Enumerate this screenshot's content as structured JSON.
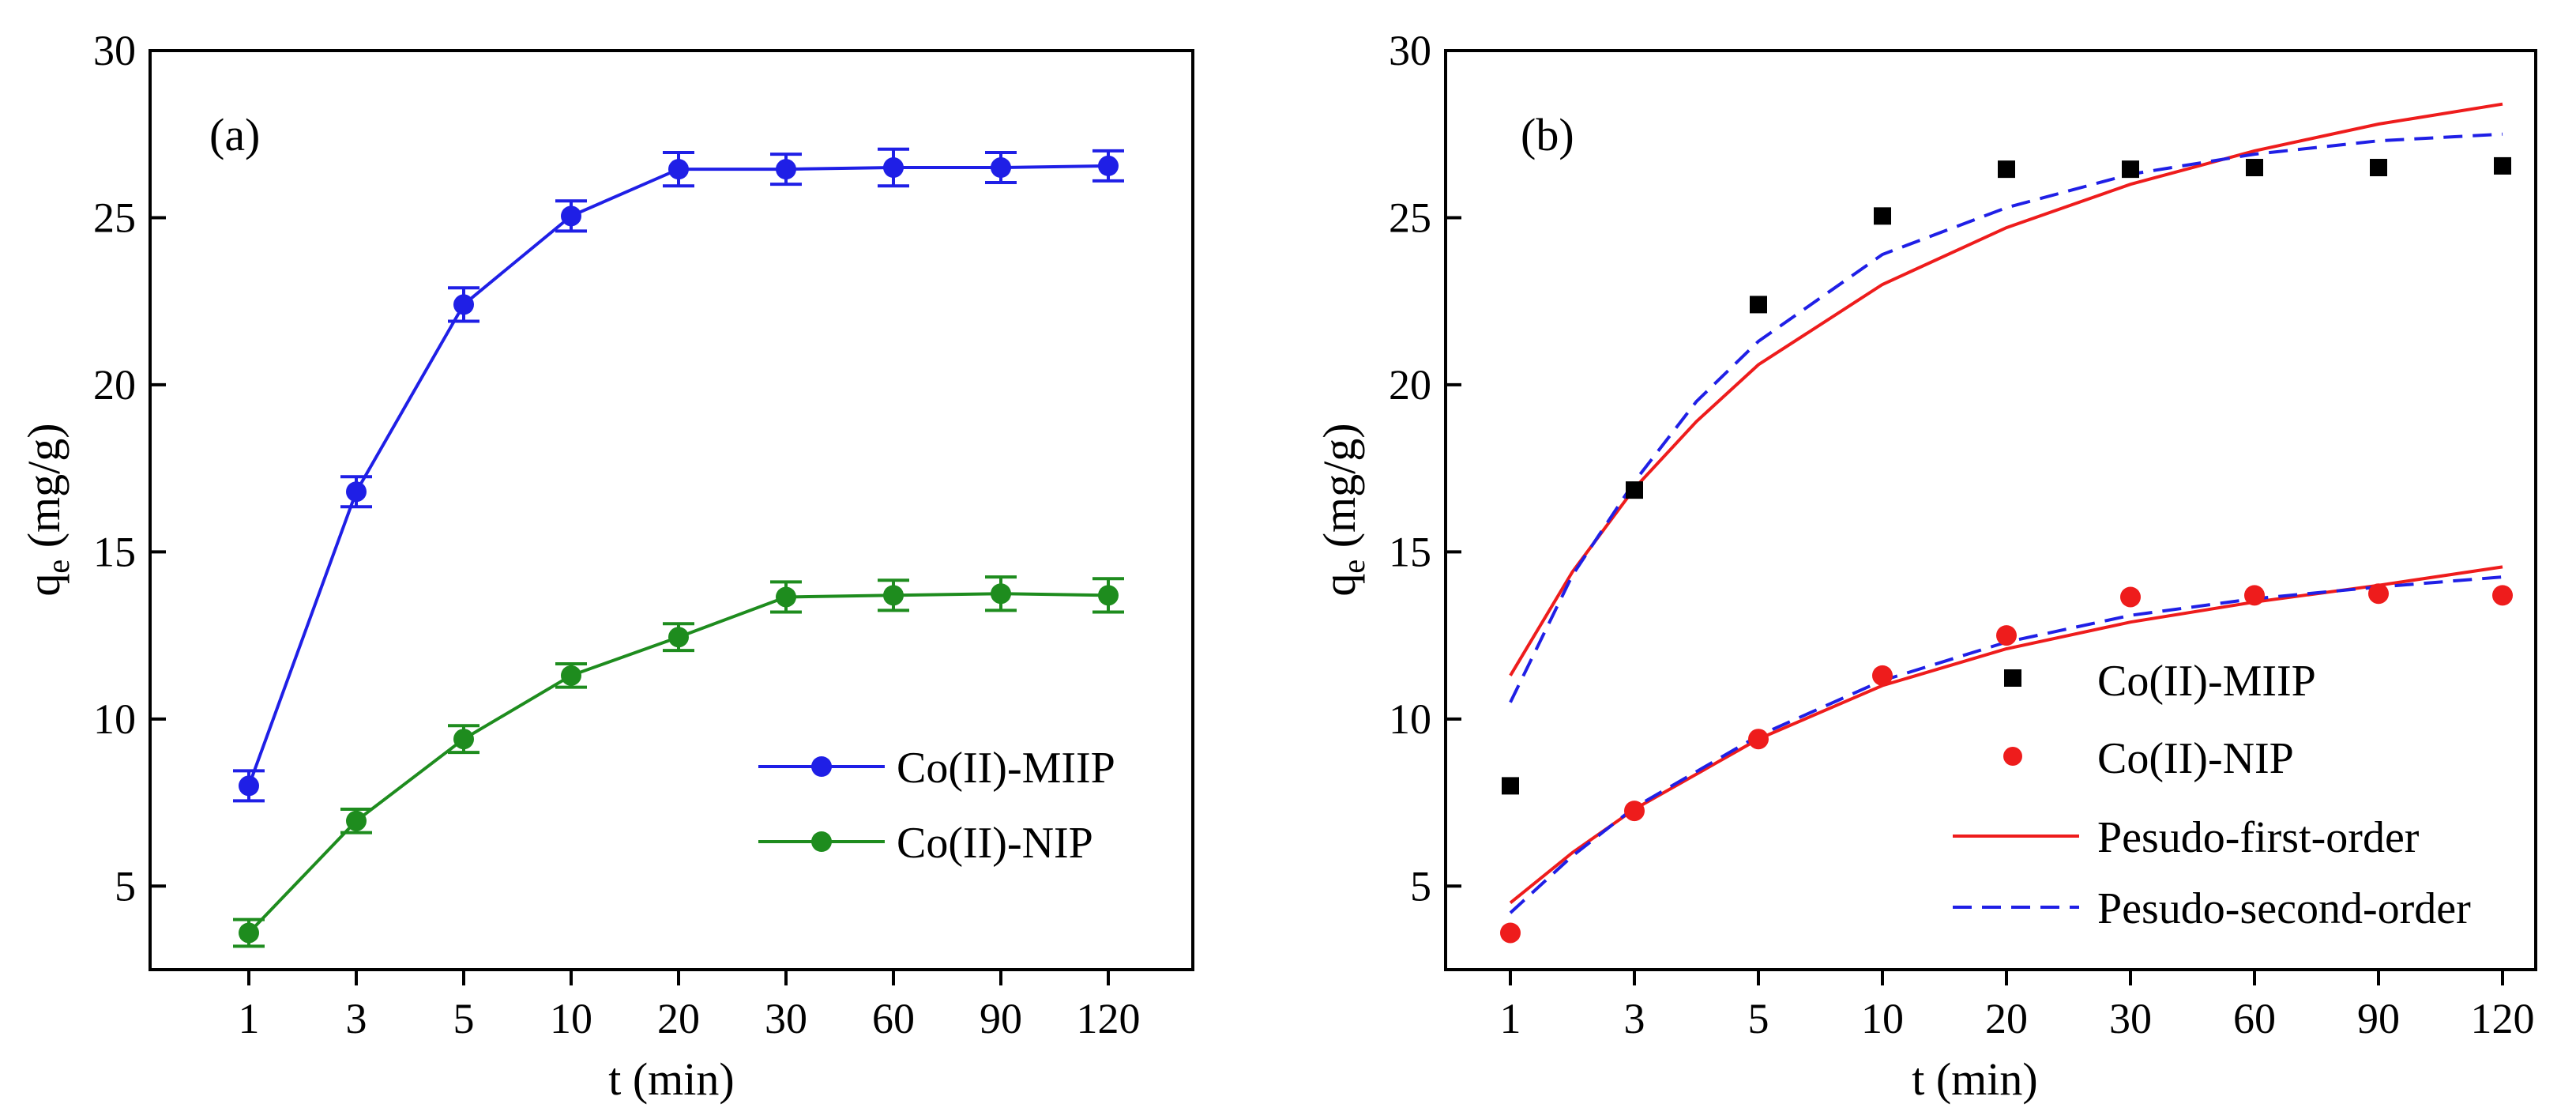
{
  "chart_data": [
    {
      "type": "line",
      "panel_label": "(a)",
      "xlabel": "t (min)",
      "ylabel_main": "q",
      "ylabel_sub": "e",
      "ylabel_unit": " (mg/g)",
      "categories": [
        "1",
        "3",
        "5",
        "10",
        "20",
        "30",
        "60",
        "90",
        "120"
      ],
      "ylim": [
        2.5,
        30
      ],
      "yticks": [
        5,
        10,
        15,
        20,
        25,
        30
      ],
      "legend_position": "lower-right",
      "series": [
        {
          "name": "Co(II)-MIIP",
          "color": "#1f1fe6",
          "values": [
            8.0,
            16.8,
            22.4,
            25.05,
            26.45,
            26.45,
            26.5,
            26.5,
            26.55
          ],
          "errors": [
            0.45,
            0.45,
            0.5,
            0.45,
            0.5,
            0.45,
            0.55,
            0.45,
            0.45
          ]
        },
        {
          "name": "Co(II)-NIP",
          "color": "#1e8c1e",
          "values": [
            3.6,
            6.95,
            9.4,
            11.3,
            12.45,
            13.65,
            13.7,
            13.75,
            13.7
          ],
          "errors": [
            0.4,
            0.35,
            0.4,
            0.35,
            0.4,
            0.45,
            0.45,
            0.5,
            0.5
          ]
        }
      ]
    },
    {
      "type": "scatter",
      "panel_label": "(b)",
      "xlabel": "t (min)",
      "ylabel_main": "q",
      "ylabel_sub": "e",
      "ylabel_unit": " (mg/g)",
      "categories": [
        "1",
        "3",
        "5",
        "10",
        "20",
        "30",
        "60",
        "90",
        "120"
      ],
      "ylim": [
        2.5,
        30
      ],
      "yticks": [
        5,
        10,
        15,
        20,
        25,
        30
      ],
      "legend_position": "lower-right",
      "series": [
        {
          "name": "Co(II)-MIIP",
          "marker": "square",
          "color": "#000000",
          "values": [
            8.0,
            16.85,
            22.4,
            25.05,
            26.45,
            26.45,
            26.5,
            26.5,
            26.55
          ]
        },
        {
          "name": "Co(II)-NIP",
          "marker": "circle",
          "color": "#ee1c1c",
          "values": [
            3.6,
            7.25,
            9.4,
            11.3,
            12.5,
            13.65,
            13.7,
            13.75,
            13.7
          ]
        }
      ],
      "fits": [
        {
          "name": "Pesudo-first-order",
          "style": "solid",
          "color": "#ee1c1c",
          "curves": [
            [
              [
                0,
                11.3
              ],
              [
                0.5,
                14.4
              ],
              [
                1,
                16.9
              ],
              [
                1.5,
                18.9
              ],
              [
                2,
                20.6
              ],
              [
                3,
                23.0
              ],
              [
                4,
                24.7
              ],
              [
                5,
                26.0
              ],
              [
                6,
                27.0
              ],
              [
                7,
                27.8
              ],
              [
                8,
                28.4
              ]
            ],
            [
              [
                0,
                4.5
              ],
              [
                0.5,
                6.0
              ],
              [
                1,
                7.3
              ],
              [
                2,
                9.4
              ],
              [
                3,
                11.0
              ],
              [
                4,
                12.1
              ],
              [
                5,
                12.9
              ],
              [
                6,
                13.5
              ],
              [
                7,
                14.0
              ],
              [
                8,
                14.55
              ]
            ]
          ]
        },
        {
          "name": "Pesudo-second-order",
          "style": "dashed",
          "color": "#1f1fe6",
          "curves": [
            [
              [
                0,
                10.5
              ],
              [
                0.5,
                14.3
              ],
              [
                1,
                17.1
              ],
              [
                1.5,
                19.5
              ],
              [
                2,
                21.3
              ],
              [
                3,
                23.9
              ],
              [
                4,
                25.3
              ],
              [
                5,
                26.3
              ],
              [
                6,
                26.9
              ],
              [
                7,
                27.3
              ],
              [
                8,
                27.5
              ]
            ],
            [
              [
                0,
                4.2
              ],
              [
                0.5,
                5.9
              ],
              [
                1,
                7.35
              ],
              [
                2,
                9.5
              ],
              [
                3,
                11.15
              ],
              [
                4,
                12.3
              ],
              [
                5,
                13.1
              ],
              [
                6,
                13.6
              ],
              [
                7,
                13.95
              ],
              [
                8,
                14.25
              ]
            ]
          ]
        }
      ]
    }
  ]
}
